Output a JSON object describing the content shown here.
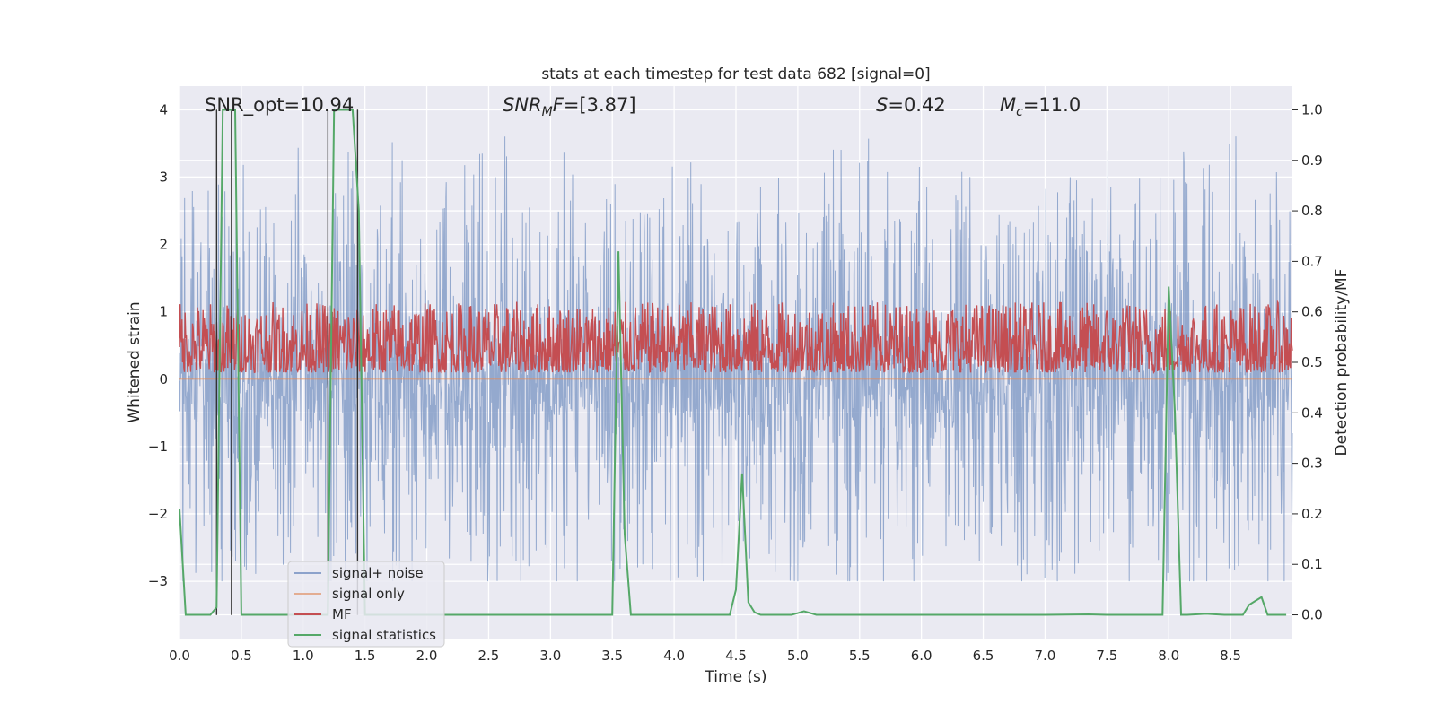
{
  "chart_data": {
    "type": "line",
    "title": "stats at each timestep for test data 682 [signal=0]",
    "xlabel": "Time (s)",
    "ylabel_left": "Whitened strain",
    "ylabel_right": "Detection probability/MF",
    "xlim": [
      0.0,
      9.0
    ],
    "ylim_left": [
      -3.85,
      4.35
    ],
    "ylim_right": [
      -0.047,
      1.047
    ],
    "x_ticks": [
      "0.0",
      "0.5",
      "1.0",
      "1.5",
      "2.0",
      "2.5",
      "3.0",
      "3.5",
      "4.0",
      "4.5",
      "5.0",
      "5.5",
      "6.0",
      "6.5",
      "7.0",
      "7.5",
      "8.0",
      "8.5"
    ],
    "y_ticks_left": [
      "4",
      "3",
      "2",
      "1",
      "0",
      "−1",
      "−2",
      "−3"
    ],
    "y_ticks_right": [
      "1.0",
      "0.9",
      "0.8",
      "0.7",
      "0.6",
      "0.5",
      "0.4",
      "0.3",
      "0.2",
      "0.1",
      "0.0"
    ],
    "grid": true,
    "legend_position": "lower-left",
    "annotations": {
      "snr_opt": "SNR_opt=10.94",
      "snr_mf_base": "SNR",
      "snr_mf_sub": "M",
      "snr_mf_rest": "F=[3.87]",
      "s_base": "S",
      "s_rest": "=0.42",
      "mc_base": "M",
      "mc_sub": "c",
      "mc_rest": "=11.0"
    },
    "series": [
      {
        "name": "signal+ noise",
        "axis": "left",
        "color": "#4c72b0",
        "description_range": [
          -3.0,
          4.0
        ]
      },
      {
        "name": "signal only",
        "axis": "left",
        "color": "#dd8452",
        "values_constant": 0.0
      },
      {
        "name": "MF",
        "axis": "right",
        "color": "#c44e52",
        "band": [
          0.48,
          0.62
        ]
      },
      {
        "name": "signal statistics",
        "axis": "right",
        "color": "#55a868",
        "x": [
          0.0,
          0.05,
          0.25,
          0.3,
          0.35,
          0.4,
          0.45,
          0.5,
          0.55,
          0.6,
          1.15,
          1.2,
          1.25,
          1.3,
          1.35,
          1.4,
          1.45,
          1.5,
          1.55,
          1.6,
          3.45,
          3.5,
          3.55,
          3.6,
          3.65,
          3.7,
          4.4,
          4.45,
          4.5,
          4.55,
          4.6,
          4.65,
          4.7,
          4.75,
          4.95,
          5.05,
          5.15,
          5.3,
          6.0,
          7.0,
          7.35,
          7.5,
          7.85,
          7.9,
          7.95,
          8.0,
          8.05,
          8.1,
          8.15,
          8.3,
          8.45,
          8.6,
          8.65,
          8.75,
          8.8,
          8.85,
          8.95
        ],
        "y": [
          0.21,
          0.0,
          0.0,
          0.015,
          1.0,
          1.0,
          1.0,
          0.0,
          0.0,
          0.0,
          0.0,
          0.0,
          1.0,
          1.0,
          1.0,
          1.0,
          0.8,
          0.0,
          0.0,
          0.0,
          0.0,
          0.0,
          0.72,
          0.16,
          0.0,
          0.0,
          0.0,
          0.0,
          0.05,
          0.28,
          0.025,
          0.005,
          0.0,
          0.0,
          0.0,
          0.007,
          0.0,
          0.0,
          0.0,
          0.0,
          0.001,
          0.0,
          0.0,
          0.0,
          0.0,
          0.65,
          0.4,
          0.0,
          0.0,
          0.002,
          0.0,
          0.0,
          0.02,
          0.035,
          0.0,
          0.0,
          0.0
        ]
      }
    ],
    "vertical_markers": [
      0.3,
      0.42,
      1.2,
      1.44
    ],
    "marker_color": "#333333"
  }
}
